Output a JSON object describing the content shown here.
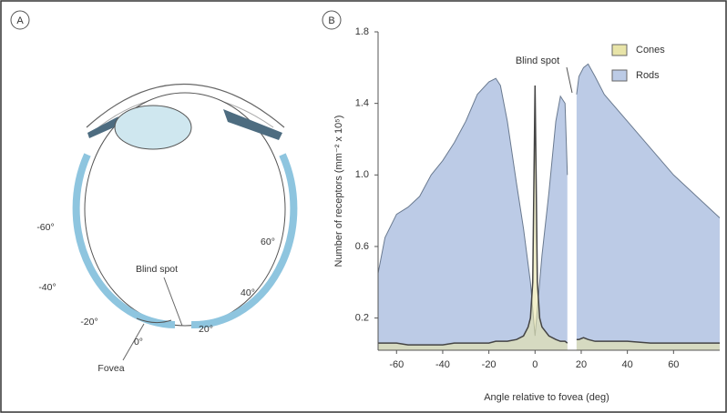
{
  "panel_a": {
    "panel_label": "A",
    "angle_labels": [
      "-60°",
      "60°",
      "-40°",
      "40°",
      "-20°",
      "20°",
      "0°"
    ],
    "blind_spot_label": "Blind spot",
    "fovea_label": "Fovea"
  },
  "chart_data": {
    "type": "area",
    "panel_label": "B",
    "x_label": "Angle relative to fovea (deg)",
    "y_label": "Number of receptors (mm⁻² x 10⁵)",
    "annotation": "Blind spot",
    "x": [
      -68,
      -65,
      -60,
      -55,
      -50,
      -45,
      -40,
      -35,
      -30,
      -25,
      -20,
      -17,
      -15,
      -12,
      -8,
      -5,
      -3,
      -2,
      -1,
      0,
      1,
      2,
      3,
      6,
      9,
      11,
      13,
      14,
      16,
      18,
      19,
      21,
      23,
      26,
      30,
      40,
      50,
      60,
      70,
      80
    ],
    "series": [
      {
        "name": "Rods",
        "color": "#bccbe6",
        "values": [
          0.45,
          0.65,
          0.78,
          0.82,
          0.88,
          1.0,
          1.08,
          1.18,
          1.3,
          1.45,
          1.52,
          1.54,
          1.5,
          1.3,
          0.95,
          0.7,
          0.5,
          0.4,
          0.25,
          0.1,
          0.25,
          0.4,
          0.55,
          0.9,
          1.3,
          1.44,
          1.4,
          1.0,
          null,
          1.45,
          1.55,
          1.6,
          1.62,
          1.55,
          1.45,
          1.3,
          1.15,
          1.0,
          0.88,
          0.76
        ]
      },
      {
        "name": "Cones",
        "color": "#e8e4a8",
        "values": [
          0.06,
          0.06,
          0.06,
          0.05,
          0.05,
          0.05,
          0.05,
          0.06,
          0.06,
          0.06,
          0.06,
          0.07,
          0.07,
          0.07,
          0.08,
          0.1,
          0.15,
          0.2,
          0.4,
          1.5,
          0.4,
          0.2,
          0.15,
          0.1,
          0.08,
          0.07,
          0.07,
          0.06,
          null,
          0.08,
          0.08,
          0.09,
          0.08,
          0.07,
          0.07,
          0.07,
          0.06,
          0.06,
          0.06,
          0.06
        ]
      }
    ],
    "xlim": [
      -68,
      80
    ],
    "xticks": [
      -60,
      -40,
      -20,
      0,
      20,
      40,
      60
    ],
    "ylim": [
      0.02,
      1.8
    ],
    "yticks": [
      0.2,
      0.6,
      {
        "value": 1,
        "label": "1.0"
      },
      1.4,
      1.8
    ]
  }
}
